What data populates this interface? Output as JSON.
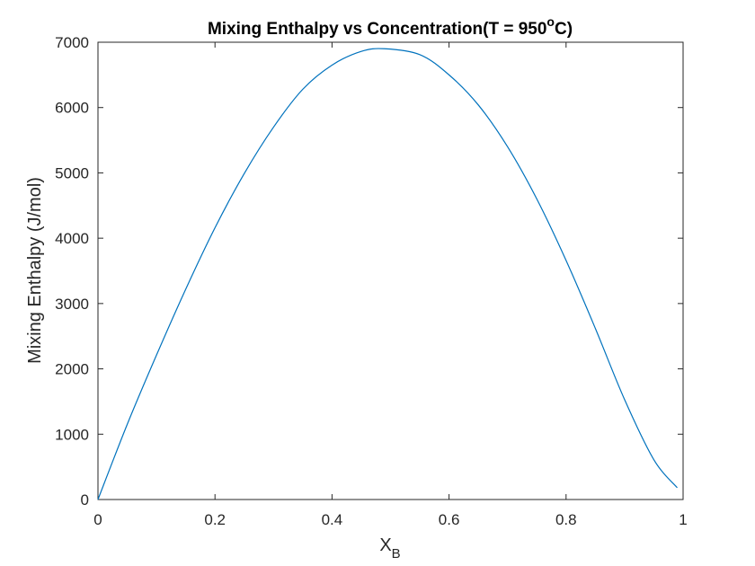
{
  "chart_data": {
    "type": "line",
    "title": "Mixing Enthalpy vs Concentration(T = 950",
    "title_sup": "o",
    "title_end": "C)",
    "xlabel": "X",
    "xlabel_sub": "B",
    "ylabel": "Mixing Enthalpy (J/mol)",
    "xlim": [
      0,
      1
    ],
    "ylim": [
      0,
      7000
    ],
    "x_ticks": [
      "0",
      "0.2",
      "0.4",
      "0.6",
      "0.8",
      "1"
    ],
    "x_tick_values": [
      0,
      0.2,
      0.4,
      0.6,
      0.8,
      1
    ],
    "y_ticks": [
      "0",
      "1000",
      "2000",
      "3000",
      "4000",
      "5000",
      "6000",
      "7000"
    ],
    "y_tick_values": [
      0,
      1000,
      2000,
      3000,
      4000,
      5000,
      6000,
      7000
    ],
    "grid": false,
    "line_color": "#0072BD",
    "series": [
      {
        "x": [
          0,
          0.05,
          0.1,
          0.15,
          0.2,
          0.25,
          0.3,
          0.35,
          0.4,
          0.45,
          0.49,
          0.55,
          0.6,
          0.65,
          0.7,
          0.75,
          0.8,
          0.85,
          0.9,
          0.95,
          0.99
        ],
        "values": [
          0,
          1150,
          2210,
          3220,
          4160,
          4990,
          5700,
          6280,
          6650,
          6860,
          6900,
          6810,
          6500,
          6040,
          5400,
          4600,
          3660,
          2620,
          1530,
          610,
          180
        ]
      }
    ]
  }
}
